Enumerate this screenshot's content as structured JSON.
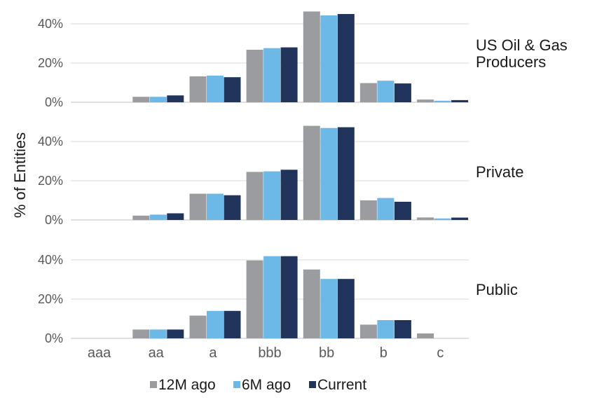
{
  "chart_data": {
    "type": "bar",
    "ylabel": "% of Entities",
    "categories": [
      "aaa",
      "aa",
      "a",
      "bbb",
      "bb",
      "b",
      "c"
    ],
    "ylim": [
      0,
      45
    ],
    "yticks": [
      "0%",
      "20%",
      "40%"
    ],
    "grid": true,
    "legend_position": "bottom",
    "series_names": [
      "12M ago",
      "6M ago",
      "Current"
    ],
    "colors": {
      "12M ago": "#9a9c9f",
      "6M ago": "#6cb8e6",
      "Current": "#20345c"
    },
    "panels": [
      {
        "label_lines": [
          "US Oil & Gas",
          "Producers"
        ],
        "series": [
          {
            "name": "12M ago",
            "values": [
              0,
              2.8,
              13.2,
              26.8,
              46.3,
              9.8,
              1.4
            ]
          },
          {
            "name": "6M ago",
            "values": [
              0,
              2.8,
              13.6,
              27.6,
              44.3,
              11.0,
              0.8
            ]
          },
          {
            "name": "Current",
            "values": [
              0,
              3.5,
              12.8,
              28.0,
              45.0,
              9.6,
              1.1
            ]
          }
        ]
      },
      {
        "label_lines": [
          "Private"
        ],
        "series": [
          {
            "name": "12M ago",
            "values": [
              0,
              2.2,
              13.4,
              24.5,
              48.0,
              10.0,
              1.3
            ]
          },
          {
            "name": "6M ago",
            "values": [
              0,
              2.7,
              13.4,
              24.8,
              46.9,
              11.2,
              0.8
            ]
          },
          {
            "name": "Current",
            "values": [
              0,
              3.4,
              12.6,
              25.6,
              47.3,
              9.3,
              1.2
            ]
          }
        ]
      },
      {
        "label_lines": [
          "Public"
        ],
        "series": [
          {
            "name": "12M ago",
            "values": [
              0,
              4.5,
              11.6,
              39.7,
              35.1,
              7.0,
              2.5
            ]
          },
          {
            "name": "6M ago",
            "values": [
              0,
              4.5,
              14.0,
              41.9,
              30.3,
              9.3,
              0
            ]
          },
          {
            "name": "Current",
            "values": [
              0,
              4.5,
              14.0,
              41.9,
              30.3,
              9.3,
              0
            ]
          }
        ]
      }
    ]
  }
}
